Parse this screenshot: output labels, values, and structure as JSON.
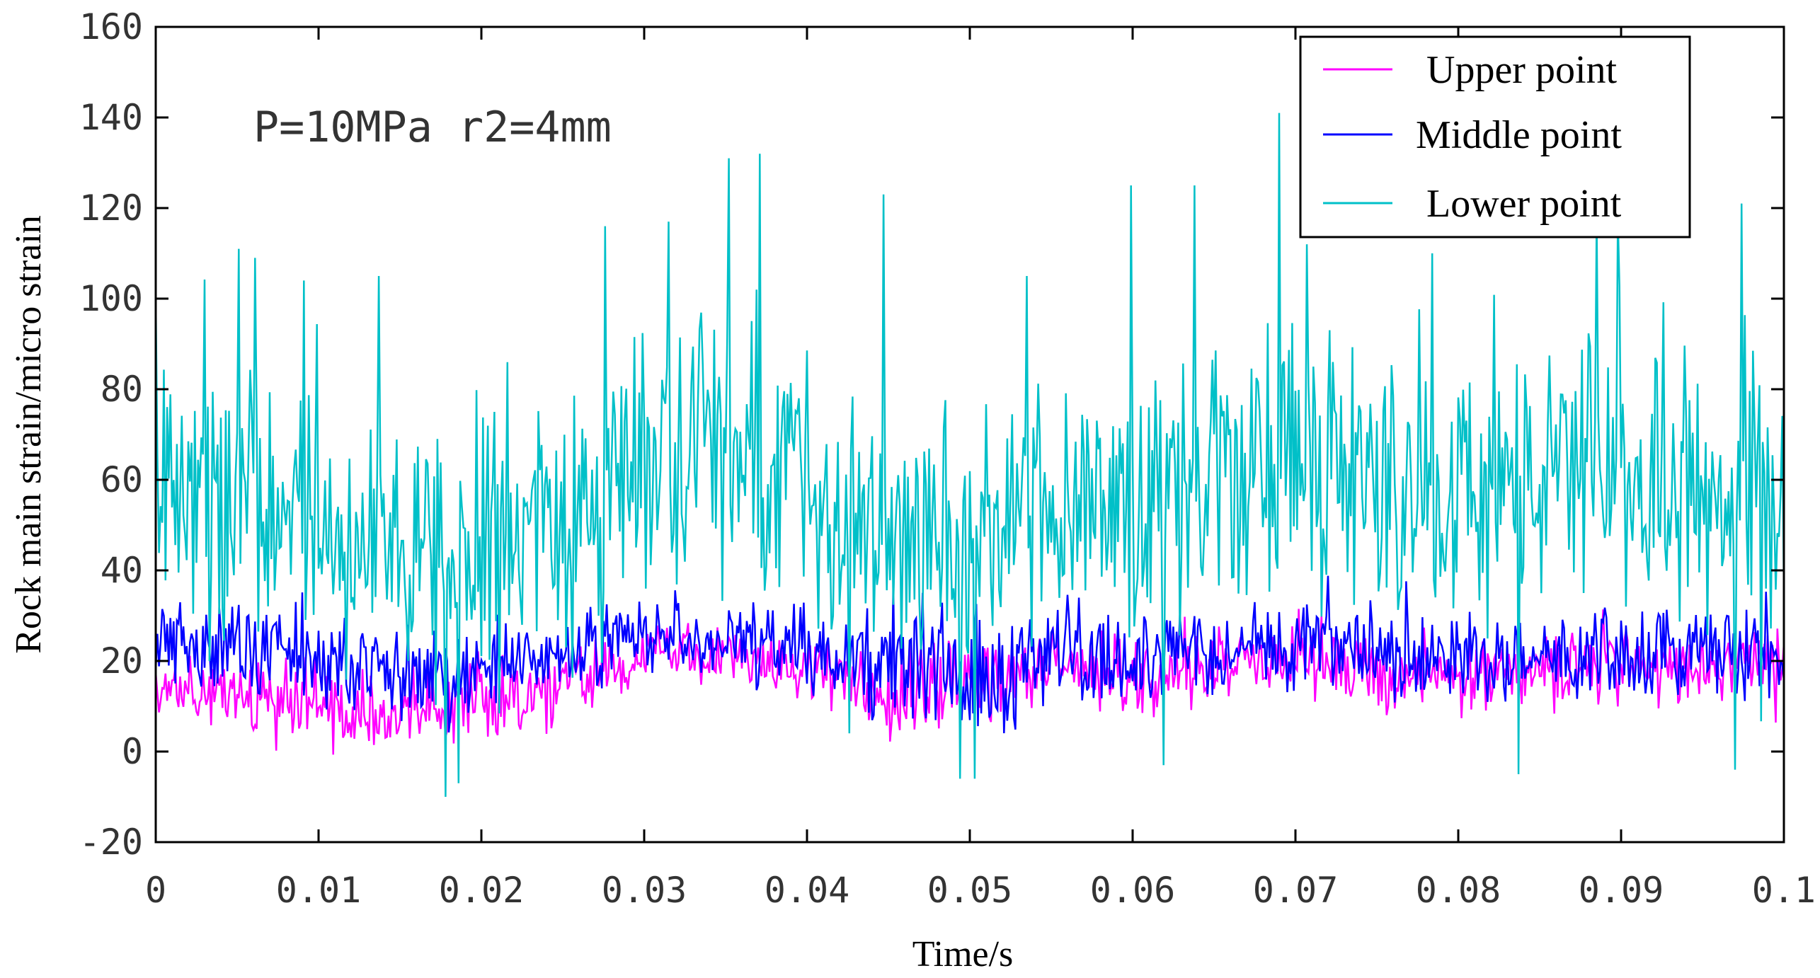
{
  "chart_data": {
    "type": "line",
    "title": "",
    "xlabel": "Time/s",
    "ylabel": "Rock main strain/micro strain",
    "xlim": [
      0,
      0.1
    ],
    "ylim": [
      -20,
      160
    ],
    "x_ticks": [
      {
        "value": 0,
        "label": "0"
      },
      {
        "value": 0.01,
        "label": "0.01"
      },
      {
        "value": 0.02,
        "label": "0.02"
      },
      {
        "value": 0.03,
        "label": "0.03"
      },
      {
        "value": 0.04,
        "label": "0.04"
      },
      {
        "value": 0.05,
        "label": "0.05"
      },
      {
        "value": 0.06,
        "label": "0.06"
      },
      {
        "value": 0.07,
        "label": "0.07"
      },
      {
        "value": 0.08,
        "label": "0.08"
      },
      {
        "value": 0.09,
        "label": "0.09"
      },
      {
        "value": 0.1,
        "label": "0.1"
      }
    ],
    "y_ticks": [
      {
        "value": -20,
        "label": "-20"
      },
      {
        "value": 0,
        "label": "0"
      },
      {
        "value": 20,
        "label": "20"
      },
      {
        "value": 40,
        "label": "40"
      },
      {
        "value": 60,
        "label": "60"
      },
      {
        "value": 80,
        "label": "80"
      },
      {
        "value": 100,
        "label": "100"
      },
      {
        "value": 120,
        "label": "120"
      },
      {
        "value": 140,
        "label": "140"
      },
      {
        "value": 160,
        "label": "160"
      }
    ],
    "annotation": "P=10MPa r2=4mm",
    "legend_position": "top-right",
    "grid": false,
    "sampling": {
      "x_start": 0,
      "x_step": 0.0001,
      "count": 1001
    },
    "series": [
      {
        "name": "Upper point",
        "color": "#ff00ff",
        "envelope_x": [
          0,
          0.005,
          0.01,
          0.015,
          0.02,
          0.025,
          0.03,
          0.035,
          0.04,
          0.045,
          0.05,
          0.055,
          0.06,
          0.065,
          0.07,
          0.075,
          0.08,
          0.085,
          0.09,
          0.095,
          0.1
        ],
        "mean": [
          14,
          13,
          10,
          9,
          11,
          15,
          21,
          22,
          17,
          12,
          14,
          20,
          15,
          18,
          21,
          17,
          16,
          18,
          20,
          18,
          20
        ],
        "amplitude": [
          6,
          7,
          7,
          7,
          7,
          6,
          5,
          5,
          6,
          8,
          9,
          6,
          6,
          6,
          6,
          6,
          6,
          6,
          6,
          6,
          6
        ],
        "min": -5,
        "max": 33
      },
      {
        "name": "Middle point",
        "color": "#0000ff",
        "envelope_x": [
          0,
          0.005,
          0.01,
          0.015,
          0.02,
          0.025,
          0.03,
          0.035,
          0.04,
          0.045,
          0.05,
          0.055,
          0.06,
          0.065,
          0.07,
          0.075,
          0.08,
          0.085,
          0.09,
          0.095,
          0.1
        ],
        "mean": [
          24,
          23,
          20,
          18,
          19,
          21,
          26,
          26,
          22,
          18,
          16,
          22,
          20,
          22,
          24,
          21,
          21,
          21,
          22,
          22,
          22
        ],
        "amplitude": [
          7,
          8,
          8,
          8,
          8,
          7,
          7,
          7,
          8,
          10,
          11,
          8,
          8,
          8,
          8,
          8,
          8,
          8,
          8,
          8,
          8
        ],
        "min": 0,
        "max": 47
      },
      {
        "name": "Lower point",
        "color": "#00c0c8",
        "envelope_x": [
          0,
          0.005,
          0.01,
          0.015,
          0.02,
          0.025,
          0.03,
          0.035,
          0.04,
          0.045,
          0.05,
          0.055,
          0.06,
          0.065,
          0.07,
          0.075,
          0.08,
          0.085,
          0.09,
          0.095,
          0.1
        ],
        "mean": [
          55,
          58,
          50,
          46,
          44,
          52,
          66,
          70,
          56,
          48,
          46,
          60,
          52,
          58,
          66,
          58,
          58,
          60,
          62,
          60,
          58
        ],
        "amplitude": [
          22,
          24,
          22,
          22,
          22,
          24,
          26,
          28,
          26,
          24,
          24,
          24,
          24,
          24,
          26,
          24,
          24,
          24,
          24,
          24,
          24
        ],
        "peaks": [
          {
            "x": 0.0,
            "y": 100
          },
          {
            "x": 0.0051,
            "y": 111
          },
          {
            "x": 0.0061,
            "y": 109
          },
          {
            "x": 0.0091,
            "y": 104
          },
          {
            "x": 0.0137,
            "y": 105
          },
          {
            "x": 0.0208,
            "y": 75
          },
          {
            "x": 0.0276,
            "y": 116
          },
          {
            "x": 0.0315,
            "y": 117
          },
          {
            "x": 0.0352,
            "y": 131
          },
          {
            "x": 0.0371,
            "y": 132
          },
          {
            "x": 0.0447,
            "y": 123
          },
          {
            "x": 0.0535,
            "y": 105
          },
          {
            "x": 0.0599,
            "y": 125
          },
          {
            "x": 0.0638,
            "y": 125
          },
          {
            "x": 0.069,
            "y": 141
          },
          {
            "x": 0.0707,
            "y": 112
          },
          {
            "x": 0.0784,
            "y": 110
          },
          {
            "x": 0.0885,
            "y": 118
          },
          {
            "x": 0.0898,
            "y": 118
          },
          {
            "x": 0.0974,
            "y": 121
          },
          {
            "x": 0.0178,
            "y": -10
          },
          {
            "x": 0.0186,
            "y": -7
          },
          {
            "x": 0.0494,
            "y": -6
          },
          {
            "x": 0.0503,
            "y": -6
          },
          {
            "x": 0.0619,
            "y": -3
          },
          {
            "x": 0.0837,
            "y": -5
          },
          {
            "x": 0.097,
            "y": -4
          }
        ],
        "min": -10,
        "max": 141
      }
    ]
  }
}
